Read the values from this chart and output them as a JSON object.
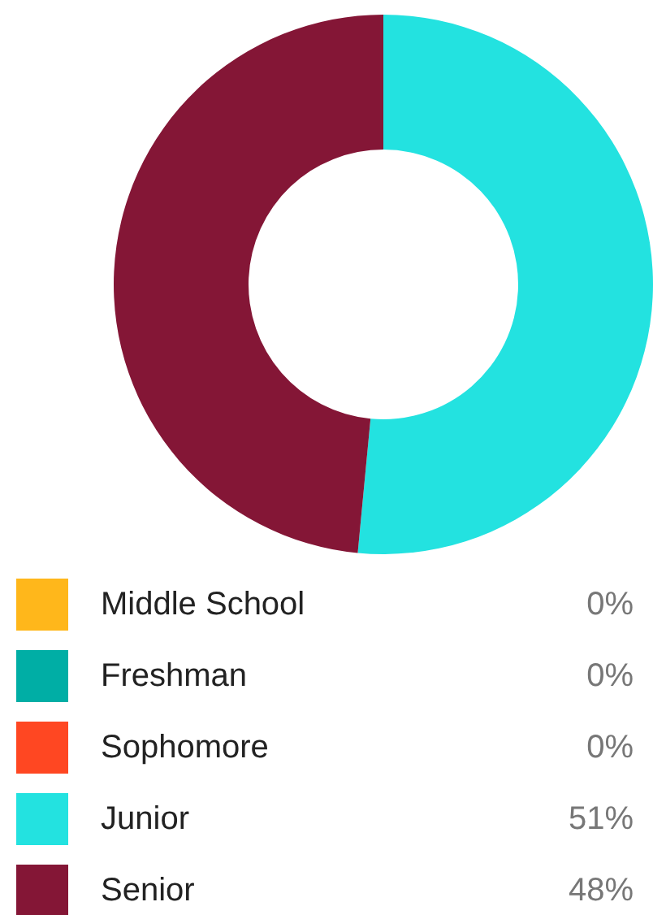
{
  "chart_data": {
    "type": "donut",
    "categories": [
      "Middle School",
      "Freshman",
      "Sophomore",
      "Junior",
      "Senior"
    ],
    "values": [
      0,
      0,
      0,
      51,
      48
    ],
    "value_labels": [
      "0%",
      "0%",
      "0%",
      "51%",
      "48%"
    ],
    "colors": [
      "#ffb71b",
      "#00aea5",
      "#ff4722",
      "#23e2e0",
      "#841636"
    ],
    "legend": "bottom"
  }
}
